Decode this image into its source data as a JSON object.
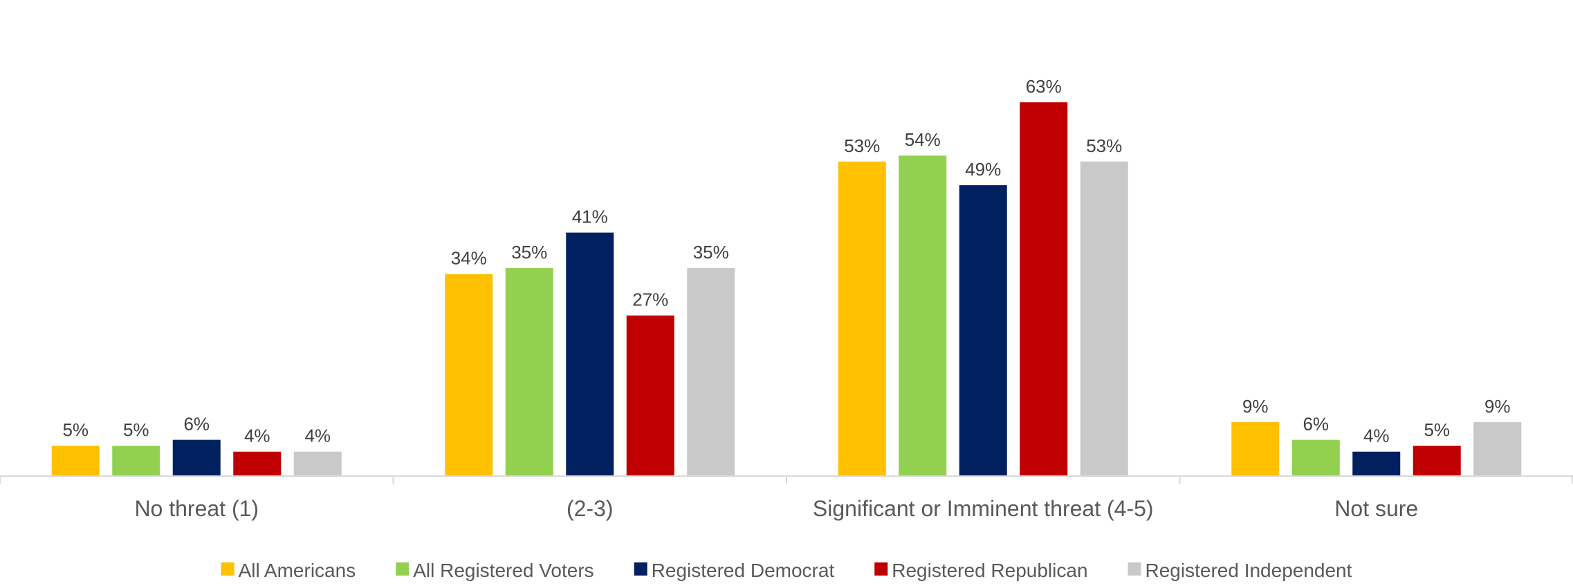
{
  "chart_data": {
    "type": "bar",
    "categories": [
      "No threat (1)",
      "(2-3)",
      "Significant or Imminent threat (4-5)",
      "Not sure"
    ],
    "series": [
      {
        "name": "All Americans",
        "color": "#FFC000",
        "values": [
          5,
          34,
          53,
          9
        ]
      },
      {
        "name": "All Registered Voters",
        "color": "#92D050",
        "values": [
          5,
          35,
          54,
          6
        ]
      },
      {
        "name": "Registered Democrat",
        "color": "#002060",
        "values": [
          6,
          41,
          49,
          4
        ]
      },
      {
        "name": "Registered Republican",
        "color": "#C00000",
        "values": [
          4,
          27,
          63,
          5
        ]
      },
      {
        "name": "Registered Independent",
        "color": "#C9C9C9",
        "values": [
          4,
          35,
          53,
          9
        ]
      }
    ],
    "value_suffix": "%",
    "ylim": [
      0,
      65
    ],
    "grid": false,
    "legend_position": "bottom"
  }
}
